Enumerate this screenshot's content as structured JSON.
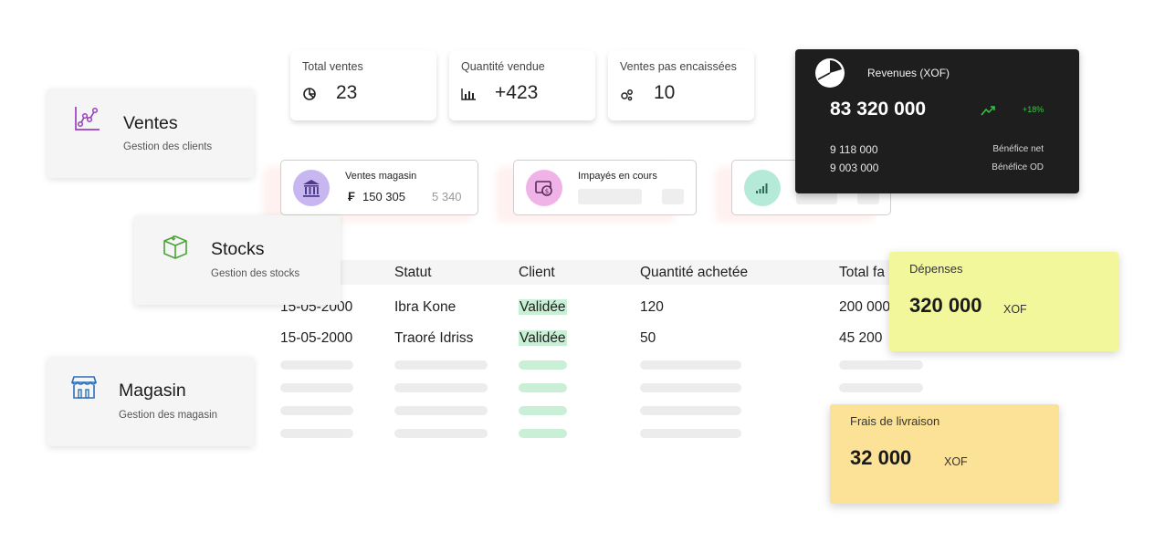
{
  "stats": [
    {
      "label": "Total ventes",
      "value": "23",
      "icon": "pie-chart-icon"
    },
    {
      "label": "Quantité vendue",
      "value": "+423",
      "icon": "bar-chart-icon"
    },
    {
      "label": "Ventes pas encaissées",
      "value": "10",
      "icon": "bubbles-icon"
    }
  ],
  "mini_cards": {
    "magasin": {
      "label": "Ventes magasin",
      "currency": "₣",
      "value": "150 305",
      "secondary": "5 340",
      "icon": "bank-icon",
      "color": "#c8b6f0"
    },
    "impayes": {
      "label": "Impayés en cours",
      "icon": "money-icon",
      "color": "#f0b3e8"
    },
    "third": {
      "icon": "signal-bars-icon",
      "color": "#b5ead8"
    }
  },
  "nav": {
    "ventes": {
      "title": "Ventes",
      "subtitle": "Gestion des clients",
      "icon": "chart-line-icon"
    },
    "stocks": {
      "title": "Stocks",
      "subtitle": "Gestion des stocks",
      "icon": "box-icon"
    },
    "magasin": {
      "title": "Magasin",
      "subtitle": "Gestion des magasin",
      "icon": "store-icon"
    }
  },
  "table": {
    "headers": [
      "Statut",
      "Client",
      "Quantité achetée",
      "Total fa"
    ],
    "rows": [
      {
        "date": "15-05-2000",
        "name": "Ibra Kone",
        "status": "Validée",
        "qty": "120",
        "total": "200 000"
      },
      {
        "date": "15-05-2000",
        "name": "Traoré Idriss",
        "status": "Validée",
        "qty": "50",
        "total": "45 200"
      }
    ]
  },
  "revenue": {
    "title": "Revenues (XOF)",
    "amount": "83 320 000",
    "trend": "+18%",
    "rows": [
      {
        "value": "9 118 000",
        "label": "Bénéfice net"
      },
      {
        "value": "9 003 000",
        "label": "Bénéfice OD"
      }
    ]
  },
  "depenses": {
    "label": "Dépenses",
    "amount": "320 000",
    "unit": "XOF"
  },
  "frais": {
    "label": "Frais de livraison",
    "amount": "32 000",
    "unit": "XOF"
  },
  "colors": {
    "accent_green": "#2ecc40",
    "dark_card": "#1e1e1e",
    "yellow": "#f3f79b",
    "amber": "#fbe297",
    "badge_green": "#c7f0d4"
  }
}
